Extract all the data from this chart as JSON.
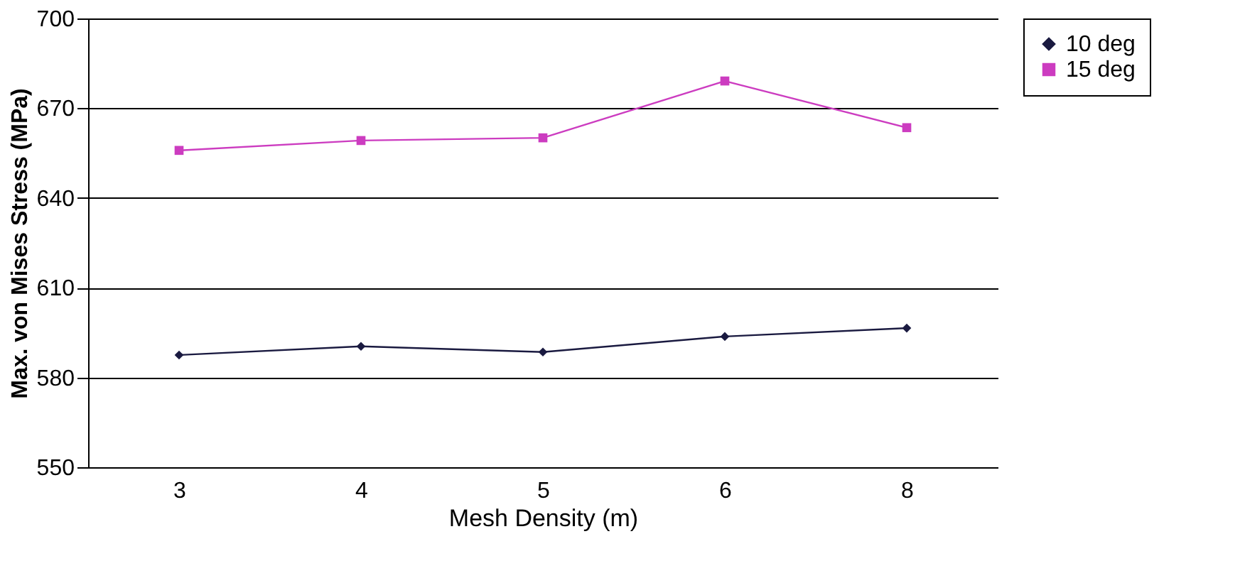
{
  "chart_data": {
    "type": "line",
    "xlabel": "Mesh Density (m)",
    "ylabel": "Max. von Mises Stress (MPa)",
    "categories": [
      "3",
      "4",
      "5",
      "6",
      "8"
    ],
    "series": [
      {
        "name": "10 deg",
        "color": "#1a1a40",
        "marker": "diamond",
        "values": [
          587.5,
          590.4,
          588.5,
          593.7,
          596.5
        ]
      },
      {
        "name": "15 deg",
        "color": "#cc3cc0",
        "marker": "square",
        "values": [
          655.9,
          659.2,
          660.1,
          679.1,
          663.5
        ]
      }
    ],
    "ylim": [
      550,
      700
    ],
    "yticks": [
      550,
      580,
      610,
      640,
      670,
      700
    ],
    "grid": "y",
    "legend": "right",
    "line_style": "solid"
  }
}
